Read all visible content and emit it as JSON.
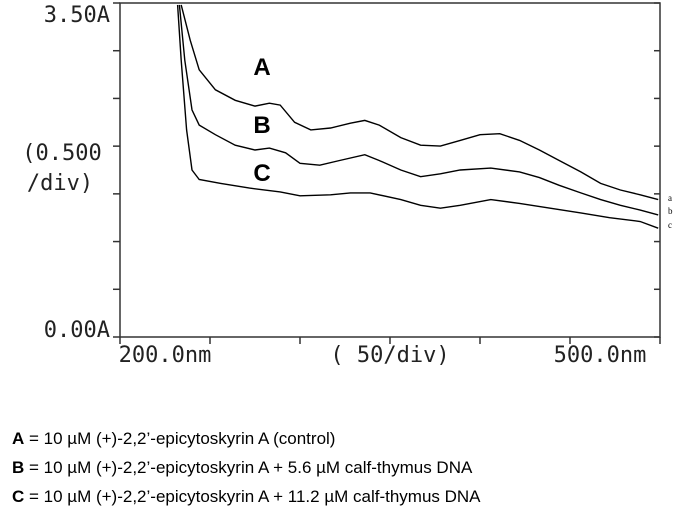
{
  "chart_data": {
    "type": "line",
    "ylabel": [
      "(0.500",
      "/div)"
    ],
    "xlabel": "(  50/div)",
    "xlim": [
      200,
      500
    ],
    "ylim": [
      0,
      3.5
    ],
    "xticks": [
      {
        "value": 200,
        "label": "200.0nm"
      },
      {
        "value": 250,
        "label": null
      },
      {
        "value": 300,
        "label": null
      },
      {
        "value": 350,
        "label": null
      },
      {
        "value": 400,
        "label": null
      },
      {
        "value": 450,
        "label": null
      },
      {
        "value": 500,
        "label": "500.0nm"
      }
    ],
    "yticks": [
      {
        "value": 0,
        "label": "0.00A"
      },
      {
        "value": 0.5,
        "label": null
      },
      {
        "value": 1,
        "label": null
      },
      {
        "value": 1.5,
        "label": null
      },
      {
        "value": 2,
        "label": null
      },
      {
        "value": 2.5,
        "label": null
      },
      {
        "value": 3,
        "label": null
      },
      {
        "value": 3.5,
        "label": "3.50A"
      }
    ],
    "series": [
      {
        "name": "A",
        "end_label": "a",
        "color": "#000000",
        "x": [
          234,
          239,
          244,
          253,
          264,
          275,
          283,
          289,
          297,
          306,
          317,
          328,
          336,
          344,
          356,
          367,
          378,
          389,
          400,
          411,
          422,
          433,
          444,
          456,
          467,
          478,
          489,
          499
        ],
        "values": [
          3.48,
          3.11,
          2.8,
          2.59,
          2.48,
          2.42,
          2.45,
          2.43,
          2.25,
          2.17,
          2.19,
          2.24,
          2.27,
          2.22,
          2.09,
          2.01,
          2.0,
          2.06,
          2.12,
          2.13,
          2.06,
          1.96,
          1.85,
          1.73,
          1.61,
          1.54,
          1.49,
          1.44
        ]
      },
      {
        "name": "B",
        "end_label": "b",
        "color": "#000000",
        "x": [
          233,
          236,
          240,
          244,
          253,
          264,
          275,
          283,
          292,
          300,
          311,
          322,
          336,
          344,
          356,
          367,
          378,
          389,
          406,
          422,
          433,
          444,
          456,
          467,
          478,
          489,
          499
        ],
        "values": [
          3.48,
          2.9,
          2.38,
          2.22,
          2.12,
          2.01,
          1.96,
          1.98,
          1.93,
          1.82,
          1.8,
          1.85,
          1.91,
          1.85,
          1.75,
          1.68,
          1.71,
          1.75,
          1.77,
          1.73,
          1.67,
          1.59,
          1.51,
          1.44,
          1.38,
          1.33,
          1.28
        ]
      },
      {
        "name": "C",
        "end_label": "c",
        "color": "#000000",
        "x": [
          232,
          234,
          237,
          240,
          244,
          256,
          272,
          289,
          300,
          317,
          328,
          339,
          356,
          367,
          378,
          389,
          406,
          422,
          439,
          456,
          472,
          489,
          499
        ],
        "values": [
          3.48,
          2.9,
          2.17,
          1.75,
          1.65,
          1.61,
          1.56,
          1.52,
          1.48,
          1.49,
          1.51,
          1.51,
          1.44,
          1.38,
          1.35,
          1.38,
          1.44,
          1.4,
          1.35,
          1.3,
          1.25,
          1.21,
          1.14
        ]
      }
    ],
    "legend": [
      {
        "key": "A",
        "text": " = 10 µM (+)-2,2’-epicytoskyrin A (control)"
      },
      {
        "key": "B",
        "text": " = 10 µM (+)-2,2’-epicytoskyrin A + 5.6 µM calf-thymus DNA"
      },
      {
        "key": "C",
        "text": " = 10 µM (+)-2,2’-epicytoskyrin A + 11.2 µM calf-thymus DNA"
      }
    ]
  }
}
